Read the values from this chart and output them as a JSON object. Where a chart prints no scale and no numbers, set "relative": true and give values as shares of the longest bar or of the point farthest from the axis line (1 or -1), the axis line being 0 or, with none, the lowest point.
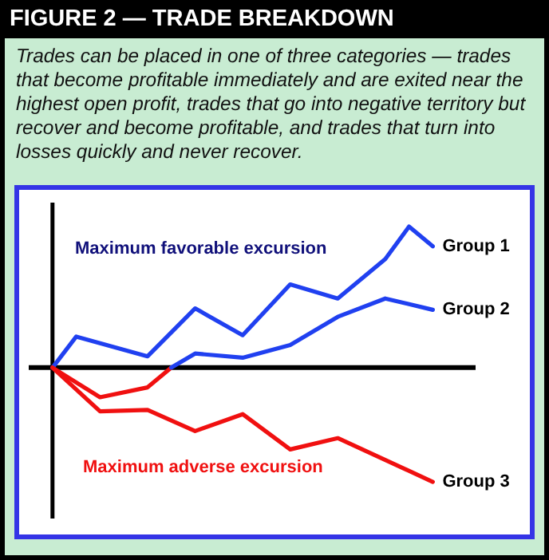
{
  "chart_data": {
    "type": "line",
    "title": "FIGURE 2 — TRADE BREAKDOWN",
    "subtitle": "Trades can be placed in one of three categories — trades that become profitable immediately and are exited near the highest open profit, trades that go into negative territory but recover and become profitable, and trades that turn into losses quickly and never recover.",
    "relative": true,
    "categories": [
      null,
      null,
      null,
      null,
      null,
      null,
      null,
      null,
      null,
      null,
      null,
      null,
      null,
      null,
      null,
      null,
      null
    ],
    "tick_labels": false,
    "grid": false,
    "legend": false,
    "marker": "none",
    "line_style": "solid",
    "annotations": [
      "Maximum favorable excursion",
      "Maximum adverse excursion"
    ],
    "series": [
      {
        "name": "Group 1",
        "color": "#2040f0",
        "values": [
          0,
          0.22,
          null,
          null,
          0.08,
          null,
          0.42,
          null,
          0.23,
          null,
          0.59,
          null,
          0.49,
          null,
          0.77,
          1,
          0.86
        ]
      },
      {
        "color": "#f01010",
        "values": [
          0,
          null,
          -0.21,
          null,
          -0.14,
          0,
          null,
          null,
          null,
          null,
          null,
          null,
          null,
          null,
          null,
          null,
          null
        ]
      },
      {
        "name": "Group 2",
        "color": "#2040f0",
        "values": [
          null,
          null,
          null,
          null,
          null,
          0,
          0.1,
          null,
          0.07,
          null,
          0.16,
          null,
          0.36,
          null,
          0.49,
          null,
          0.41
        ]
      },
      {
        "name": "Group 3",
        "color": "#f01010",
        "values": [
          0,
          null,
          -0.31,
          null,
          -0.3,
          null,
          -0.45,
          null,
          -0.33,
          null,
          -0.58,
          null,
          -0.5,
          null,
          null,
          null,
          -0.81
        ]
      }
    ]
  }
}
